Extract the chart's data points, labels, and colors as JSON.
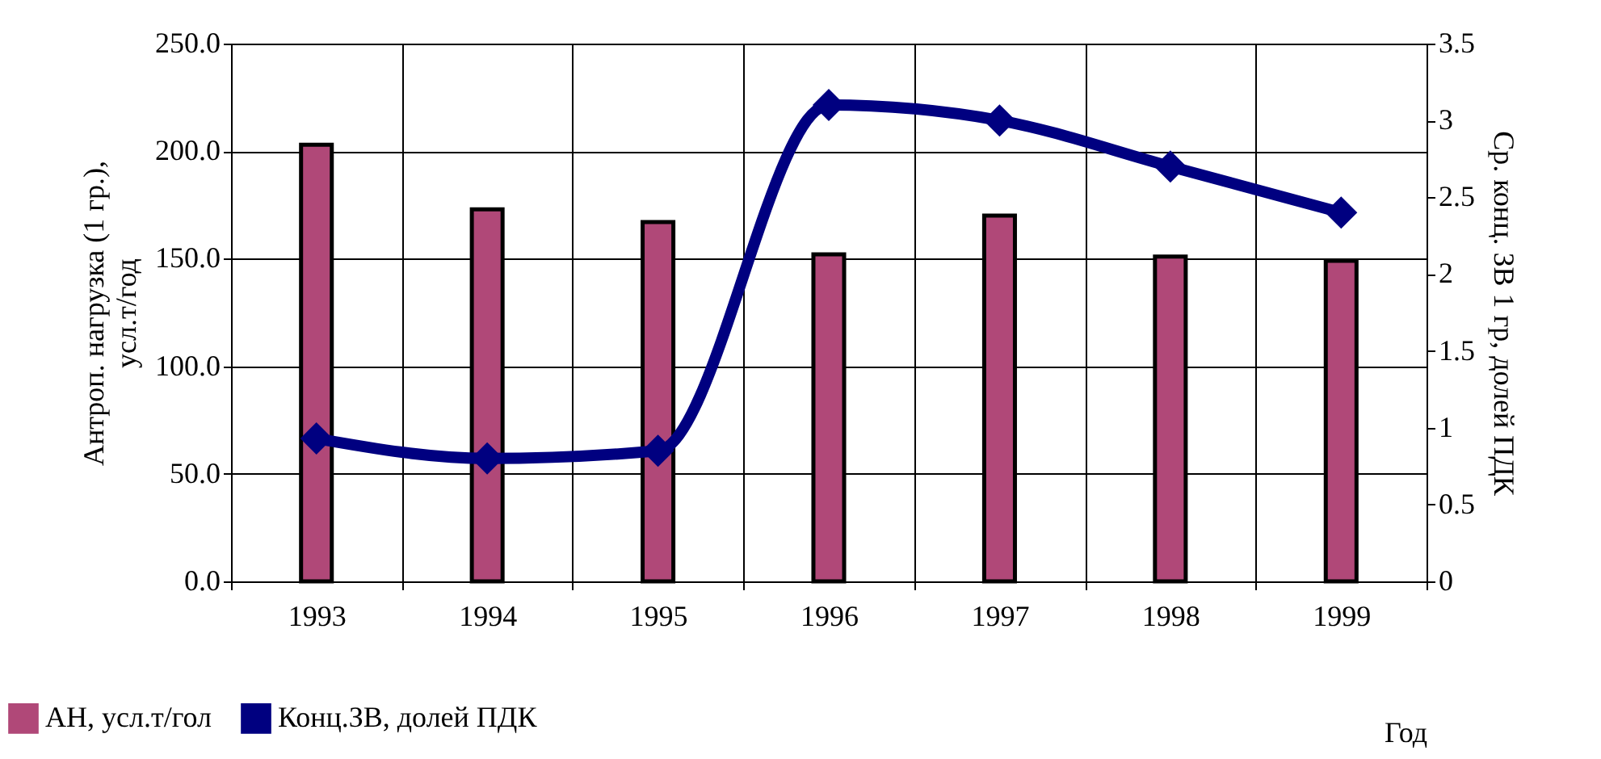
{
  "chart_data": {
    "type": "bar",
    "xlabel": "Год",
    "ylabel": "Антроп. нагрузка (1 гр.),\nусл.т/год",
    "y2label": "Ср. конц. ЗВ 1 гр, долей ПДК",
    "categories": [
      "1993",
      "1994",
      "1995",
      "1996",
      "1997",
      "1998",
      "1999"
    ],
    "series": [
      {
        "name": "АН, усл.т/гол",
        "color": "#b04878",
        "values": [
          203,
          173,
          167,
          152,
          170,
          151,
          149
        ]
      },
      {
        "name": "Конц.ЗВ, долей ПДК",
        "type": "line",
        "axis": "y2",
        "color": "#000080",
        "marker": "diamond",
        "values": [
          0.93,
          0.8,
          0.85,
          3.1,
          3.0,
          2.7,
          2.4
        ]
      }
    ],
    "ylim": [
      0,
      250
    ],
    "yticks": [
      {
        "value": 0,
        "label": "0.0"
      },
      {
        "value": 50,
        "label": "50.0"
      },
      {
        "value": 100,
        "label": "100.0"
      },
      {
        "value": 150,
        "label": "150.0"
      },
      {
        "value": 200,
        "label": "200.0"
      },
      {
        "value": 250,
        "label": "250.0"
      }
    ],
    "y2lim": [
      0,
      3.5
    ],
    "y2ticks": [
      0,
      0.5,
      1,
      1.5,
      2,
      2.5,
      3,
      3.5
    ],
    "grid": true,
    "legend": "bottom left"
  }
}
